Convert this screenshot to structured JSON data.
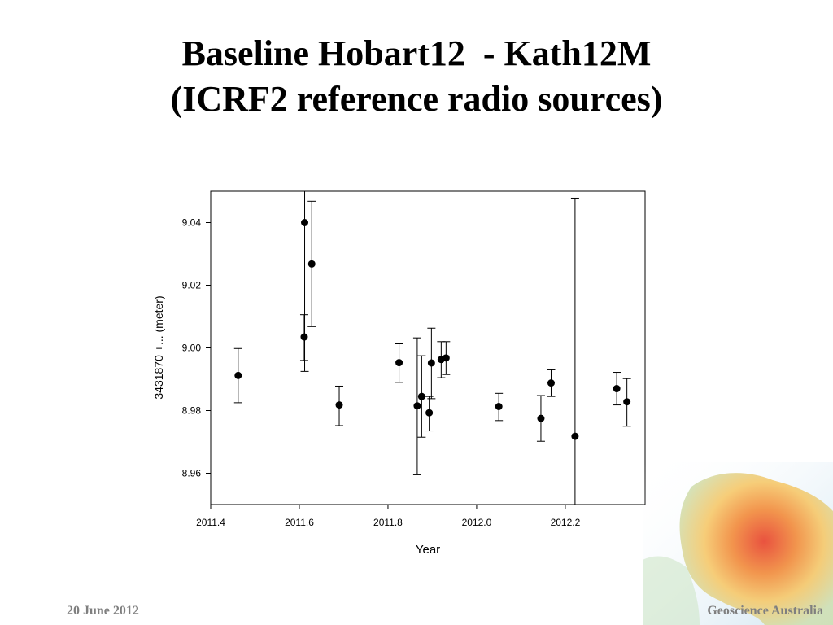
{
  "slide": {
    "title_line1": "Baseline Hobart12  - Kath12M",
    "title_line2": "(ICRF2 reference radio sources)",
    "footer_date": "20 June 2012",
    "footer_org": "Geoscience Australia"
  },
  "chart_data": {
    "type": "scatter",
    "title": "",
    "xlabel": "Year",
    "ylabel": "3431870 +... (meter)",
    "xlim": [
      2011.4,
      2012.38
    ],
    "ylim": [
      8.95,
      9.05
    ],
    "xticks": [
      "2011.4",
      "2011.6",
      "2011.8",
      "2012.0",
      "2012.2"
    ],
    "yticks": [
      "8.96",
      "8.98",
      "9.00",
      "9.02",
      "9.04"
    ],
    "xtick_values": [
      2011.4,
      2011.6,
      2011.8,
      2012.0,
      2012.2
    ],
    "ytick_values": [
      8.96,
      8.98,
      9.0,
      9.02,
      9.04
    ],
    "grid": false,
    "marker_color": "#000000",
    "points": [
      {
        "x": 2011.462,
        "y": 8.9912,
        "lo": 8.9825,
        "hi": 8.9998
      },
      {
        "x": 2011.611,
        "y": 9.0035,
        "lo": 8.996,
        "hi": 9.0106
      },
      {
        "x": 2011.612,
        "y": 9.04,
        "lo": 8.9925,
        "hi": 9.05
      },
      {
        "x": 2011.628,
        "y": 9.0268,
        "lo": 9.0068,
        "hi": 9.0468
      },
      {
        "x": 2011.69,
        "y": 8.9818,
        "lo": 8.9752,
        "hi": 8.9878
      },
      {
        "x": 2011.825,
        "y": 8.9953,
        "lo": 8.989,
        "hi": 9.0013
      },
      {
        "x": 2011.866,
        "y": 8.9815,
        "lo": 8.9595,
        "hi": 9.0032
      },
      {
        "x": 2011.876,
        "y": 8.9845,
        "lo": 8.9715,
        "hi": 8.9975
      },
      {
        "x": 2011.893,
        "y": 8.9793,
        "lo": 8.9735,
        "hi": 8.9845
      },
      {
        "x": 2011.898,
        "y": 8.9952,
        "lo": 8.9838,
        "hi": 9.0063
      },
      {
        "x": 2011.92,
        "y": 8.9963,
        "lo": 8.9905,
        "hi": 9.002
      },
      {
        "x": 2011.931,
        "y": 8.9968,
        "lo": 8.9915,
        "hi": 9.002
      },
      {
        "x": 2012.05,
        "y": 8.9813,
        "lo": 8.9768,
        "hi": 8.9855
      },
      {
        "x": 2012.145,
        "y": 8.9775,
        "lo": 8.9702,
        "hi": 8.9848
      },
      {
        "x": 2012.168,
        "y": 8.9888,
        "lo": 8.9845,
        "hi": 8.993
      },
      {
        "x": 2012.222,
        "y": 8.9718,
        "lo": 8.95,
        "hi": 9.0478
      },
      {
        "x": 2012.316,
        "y": 8.987,
        "lo": 8.9818,
        "hi": 8.9922
      },
      {
        "x": 2012.339,
        "y": 8.9828,
        "lo": 8.975,
        "hi": 8.9902
      }
    ]
  }
}
